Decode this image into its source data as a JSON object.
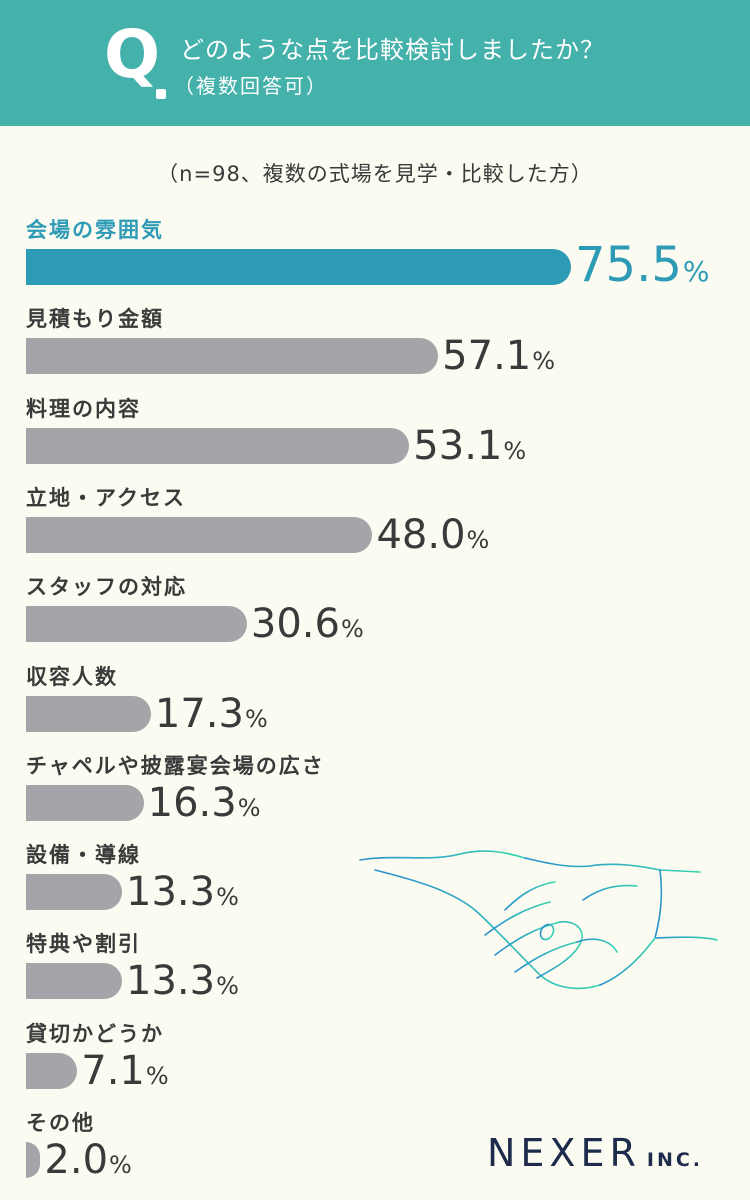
{
  "header": {
    "q_letter": "Q",
    "question": "どのような点を比較検討しましたか？",
    "note": "（複数回答可）"
  },
  "sample_note": "（n=98、複数の式場を見学・比較した方）",
  "colors": {
    "header_bg": "#44b1ab",
    "highlight": "#2e9bb6",
    "bar": "#a4a4a9",
    "text": "#3a3a3a"
  },
  "chart_data": {
    "type": "bar",
    "orientation": "horizontal",
    "unit": "%",
    "categories": [
      "会場の雰囲気",
      "見積もり金額",
      "料理の内容",
      "立地・アクセス",
      "スタッフの対応",
      "収容人数",
      "チャペルや披露宴会場の広さ",
      "設備・導線",
      "特典や割引",
      "貸切かどうか",
      "その他"
    ],
    "values": [
      75.5,
      57.1,
      53.1,
      48.0,
      30.6,
      17.3,
      16.3,
      13.3,
      13.3,
      7.1,
      2.0
    ],
    "value_labels": [
      "75.5",
      "57.1",
      "53.1",
      "48.0",
      "30.6",
      "17.3",
      "16.3",
      "13.3",
      "13.3",
      "7.1",
      "2.0"
    ],
    "highlight_index": 0
  },
  "logo": {
    "main": "NEXER",
    "sub": "INC."
  },
  "illustration": "handshake-icon"
}
